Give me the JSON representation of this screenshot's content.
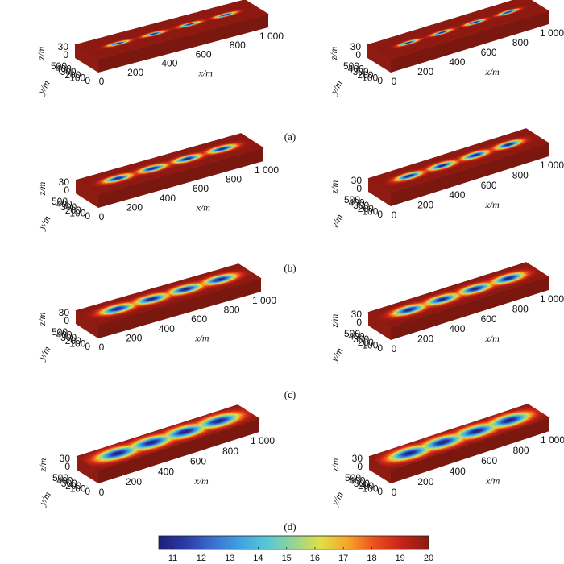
{
  "chart_data": {
    "type": "surface",
    "title": "",
    "rows": [
      {
        "caption": "(a)",
        "spread": 0.16
      },
      {
        "caption": "(b)",
        "spread": 0.42
      },
      {
        "caption": "(c)",
        "spread": 0.62
      },
      {
        "caption": "(d)",
        "spread": 0.95
      }
    ],
    "panels_per_row": 2,
    "axes": {
      "x": {
        "label": "x/m",
        "ticks": [
          "0",
          "200",
          "400",
          "600",
          "800",
          "1 000"
        ],
        "values": [
          0,
          200,
          400,
          600,
          800,
          1000
        ],
        "range": [
          0,
          1000
        ]
      },
      "y": {
        "label": "y/m",
        "ticks": [
          "0",
          "100",
          "200",
          "300",
          "400",
          "500"
        ],
        "values": [
          0,
          100,
          200,
          300,
          400,
          500
        ],
        "range": [
          0,
          500
        ]
      },
      "z": {
        "label": "z/m",
        "ticks": [
          "0",
          "30"
        ],
        "values": [
          0,
          30
        ],
        "range": [
          0,
          30
        ]
      }
    },
    "sources_x_m": [
      190,
      400,
      610,
      820
    ],
    "colorbar": {
      "ticks": [
        "11",
        "12",
        "13",
        "14",
        "15",
        "16",
        "17",
        "18",
        "19",
        "20"
      ],
      "values": [
        11,
        12,
        13,
        14,
        15,
        16,
        17,
        18,
        19,
        20
      ],
      "range": [
        10.5,
        20
      ],
      "colormap": [
        "#1e1e78",
        "#2b3ba6",
        "#3a6fd0",
        "#3fa2e0",
        "#56c8d6",
        "#96d494",
        "#e0df45",
        "#f7a52a",
        "#ec4f1c",
        "#c42418",
        "#8b1a12"
      ]
    }
  }
}
